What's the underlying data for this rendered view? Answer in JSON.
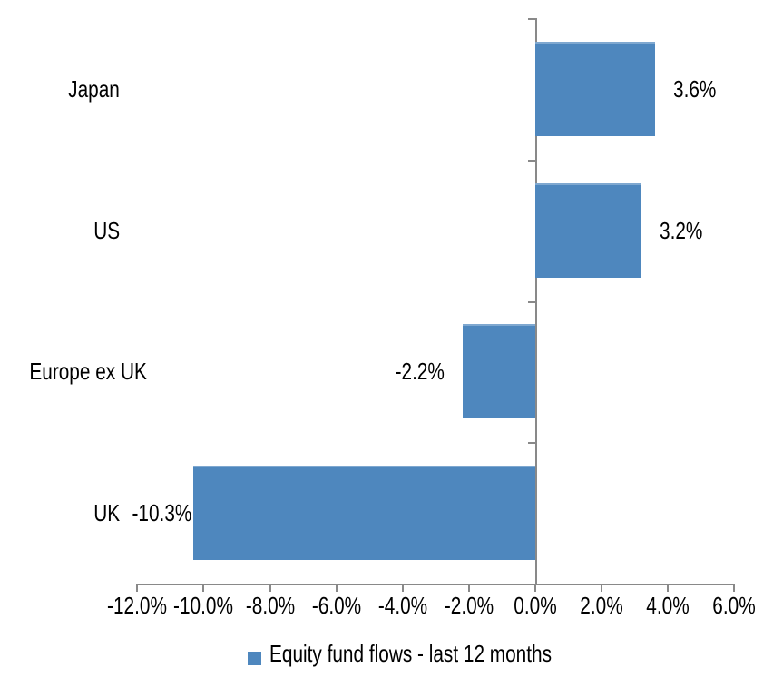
{
  "chart_data": {
    "type": "bar",
    "orientation": "horizontal",
    "title": "",
    "categories": [
      "Japan",
      "US",
      "Europe ex UK",
      "UK"
    ],
    "values": [
      3.6,
      3.2,
      -2.2,
      -10.3
    ],
    "data_labels": [
      "3.6%",
      "3.2%",
      "-2.2%",
      "-10.3%"
    ],
    "series_name": "Equity fund flows - last 12 months",
    "xlim": [
      -12,
      6
    ],
    "x_tick_step": 2,
    "x_tick_values": [
      -12,
      -10,
      -8,
      -6,
      -4,
      -2,
      0,
      2,
      4,
      6
    ],
    "x_tick_labels": [
      "-12.0%",
      "-10.0%",
      "-8.0%",
      "-6.0%",
      "-4.0%",
      "-2.0%",
      "0.0%",
      "2.0%",
      "4.0%",
      "6.0%"
    ],
    "grid": false,
    "legend_position": "bottom",
    "bar_color": "#4E87BE",
    "axis_color": "#898989",
    "text_color": "#000000"
  },
  "legend": {
    "label": "Equity fund flows - last 12 months"
  }
}
